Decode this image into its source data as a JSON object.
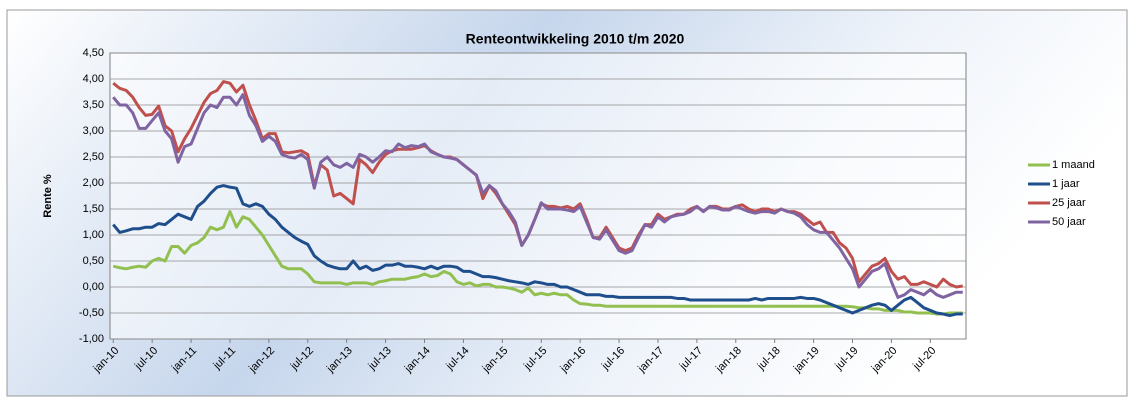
{
  "chart_data": {
    "type": "line",
    "title": "Renteontwikkeling 2010 t/m 2020",
    "y_label": "Rente %",
    "categories": [
      "jan-10",
      null,
      null,
      null,
      null,
      null,
      "jul-10",
      null,
      null,
      null,
      null,
      null,
      "jan-11",
      null,
      null,
      null,
      null,
      null,
      "jul-11",
      null,
      null,
      null,
      null,
      null,
      "jan-12",
      null,
      null,
      null,
      null,
      null,
      "jul-12",
      null,
      null,
      null,
      null,
      null,
      "jan-13",
      null,
      null,
      null,
      null,
      null,
      "jul-13",
      null,
      null,
      null,
      null,
      null,
      "jan-14",
      null,
      null,
      null,
      null,
      null,
      "jul-14",
      null,
      null,
      null,
      null,
      null,
      "jan-15",
      null,
      null,
      null,
      null,
      null,
      "jul-15",
      null,
      null,
      null,
      null,
      null,
      "jan-16",
      null,
      null,
      null,
      null,
      null,
      "jul-16",
      null,
      null,
      null,
      null,
      null,
      "jan-17",
      null,
      null,
      null,
      null,
      null,
      "jul-17",
      null,
      null,
      null,
      null,
      null,
      "jan-18",
      null,
      null,
      null,
      null,
      null,
      "jul-18",
      null,
      null,
      null,
      null,
      null,
      "jan-19",
      null,
      null,
      null,
      null,
      null,
      "jul-19",
      null,
      null,
      null,
      null,
      null,
      "jan-20",
      null,
      null,
      null,
      null,
      null,
      "jul-20",
      null,
      null,
      null,
      null,
      null
    ],
    "series": [
      {
        "name": "1 maand",
        "color": "#92c050",
        "values": [
          0.4,
          0.37,
          0.35,
          0.38,
          0.4,
          0.38,
          0.5,
          0.55,
          0.5,
          0.78,
          0.78,
          0.65,
          0.8,
          0.85,
          0.95,
          1.15,
          1.1,
          1.15,
          1.45,
          1.15,
          1.35,
          1.3,
          1.15,
          1.0,
          0.8,
          0.6,
          0.4,
          0.35,
          0.35,
          0.35,
          0.25,
          0.1,
          0.08,
          0.08,
          0.08,
          0.08,
          0.05,
          0.08,
          0.08,
          0.08,
          0.05,
          0.1,
          0.12,
          0.15,
          0.15,
          0.15,
          0.18,
          0.2,
          0.25,
          0.2,
          0.22,
          0.3,
          0.25,
          0.1,
          0.05,
          0.08,
          0.02,
          0.05,
          0.05,
          0.0,
          0.0,
          -0.02,
          -0.05,
          -0.1,
          -0.02,
          -0.15,
          -0.12,
          -0.15,
          -0.12,
          -0.15,
          -0.15,
          -0.25,
          -0.32,
          -0.33,
          -0.35,
          -0.35,
          -0.37,
          -0.37,
          -0.37,
          -0.37,
          -0.37,
          -0.37,
          -0.37,
          -0.37,
          -0.37,
          -0.37,
          -0.37,
          -0.37,
          -0.37,
          -0.37,
          -0.37,
          -0.37,
          -0.37,
          -0.37,
          -0.37,
          -0.37,
          -0.37,
          -0.37,
          -0.37,
          -0.37,
          -0.37,
          -0.37,
          -0.37,
          -0.37,
          -0.37,
          -0.37,
          -0.37,
          -0.37,
          -0.37,
          -0.37,
          -0.37,
          -0.37,
          -0.37,
          -0.37,
          -0.38,
          -0.4,
          -0.4,
          -0.42,
          -0.42,
          -0.45,
          -0.45,
          -0.45,
          -0.48,
          -0.48,
          -0.5,
          -0.5,
          -0.5,
          -0.52,
          -0.52,
          -0.5,
          -0.5,
          -0.5
        ]
      },
      {
        "name": "1 jaar",
        "color": "#1f4e8c",
        "values": [
          1.2,
          1.05,
          1.08,
          1.12,
          1.12,
          1.15,
          1.15,
          1.22,
          1.2,
          1.3,
          1.4,
          1.35,
          1.3,
          1.55,
          1.65,
          1.8,
          1.92,
          1.95,
          1.92,
          1.9,
          1.6,
          1.55,
          1.6,
          1.55,
          1.4,
          1.3,
          1.15,
          1.05,
          0.95,
          0.88,
          0.82,
          0.6,
          0.5,
          0.42,
          0.38,
          0.35,
          0.35,
          0.5,
          0.35,
          0.4,
          0.32,
          0.35,
          0.42,
          0.42,
          0.45,
          0.4,
          0.4,
          0.38,
          0.35,
          0.4,
          0.35,
          0.4,
          0.4,
          0.38,
          0.3,
          0.3,
          0.25,
          0.2,
          0.2,
          0.18,
          0.15,
          0.12,
          0.1,
          0.08,
          0.05,
          0.1,
          0.08,
          0.05,
          0.05,
          0.0,
          0.0,
          -0.05,
          -0.1,
          -0.15,
          -0.15,
          -0.15,
          -0.18,
          -0.18,
          -0.2,
          -0.2,
          -0.2,
          -0.2,
          -0.2,
          -0.2,
          -0.2,
          -0.2,
          -0.2,
          -0.22,
          -0.22,
          -0.25,
          -0.25,
          -0.25,
          -0.25,
          -0.25,
          -0.25,
          -0.25,
          -0.25,
          -0.25,
          -0.25,
          -0.22,
          -0.25,
          -0.22,
          -0.22,
          -0.22,
          -0.22,
          -0.22,
          -0.2,
          -0.22,
          -0.22,
          -0.25,
          -0.3,
          -0.35,
          -0.4,
          -0.45,
          -0.5,
          -0.45,
          -0.4,
          -0.35,
          -0.32,
          -0.35,
          -0.45,
          -0.35,
          -0.25,
          -0.2,
          -0.3,
          -0.4,
          -0.45,
          -0.5,
          -0.52,
          -0.55,
          -0.52,
          -0.52
        ]
      },
      {
        "name": "25 jaar",
        "color": "#c0504d",
        "values": [
          3.92,
          3.82,
          3.78,
          3.65,
          3.45,
          3.3,
          3.32,
          3.48,
          3.1,
          3.0,
          2.6,
          2.85,
          3.05,
          3.3,
          3.55,
          3.72,
          3.78,
          3.95,
          3.92,
          3.75,
          3.88,
          3.5,
          3.2,
          2.85,
          2.95,
          2.95,
          2.6,
          2.58,
          2.6,
          2.62,
          2.55,
          1.95,
          2.35,
          2.25,
          1.75,
          1.8,
          1.7,
          1.6,
          2.45,
          2.35,
          2.2,
          2.4,
          2.55,
          2.62,
          2.65,
          2.65,
          2.65,
          2.68,
          2.72,
          2.62,
          2.55,
          2.5,
          2.5,
          2.45,
          2.35,
          2.25,
          2.15,
          1.7,
          1.95,
          1.8,
          1.6,
          1.4,
          1.2,
          0.8,
          1.0,
          1.3,
          1.6,
          1.55,
          1.55,
          1.52,
          1.55,
          1.5,
          1.6,
          1.3,
          0.95,
          0.95,
          1.15,
          0.95,
          0.75,
          0.7,
          0.75,
          1.0,
          1.2,
          1.2,
          1.4,
          1.3,
          1.35,
          1.4,
          1.4,
          1.5,
          1.55,
          1.45,
          1.55,
          1.55,
          1.5,
          1.5,
          1.55,
          1.58,
          1.5,
          1.45,
          1.5,
          1.5,
          1.45,
          1.5,
          1.45,
          1.45,
          1.4,
          1.3,
          1.2,
          1.25,
          1.05,
          1.05,
          0.85,
          0.75,
          0.55,
          0.1,
          0.25,
          0.4,
          0.45,
          0.55,
          0.3,
          0.15,
          0.2,
          0.05,
          0.05,
          0.1,
          0.05,
          0.0,
          0.15,
          0.05,
          0.0,
          0.02
        ]
      },
      {
        "name": "50 jaar",
        "color": "#8064a2",
        "values": [
          3.65,
          3.5,
          3.5,
          3.35,
          3.05,
          3.05,
          3.2,
          3.35,
          3.0,
          2.85,
          2.4,
          2.7,
          2.75,
          3.05,
          3.35,
          3.5,
          3.45,
          3.65,
          3.65,
          3.5,
          3.7,
          3.3,
          3.1,
          2.8,
          2.9,
          2.8,
          2.55,
          2.5,
          2.48,
          2.55,
          2.45,
          1.9,
          2.4,
          2.5,
          2.35,
          2.3,
          2.38,
          2.3,
          2.55,
          2.5,
          2.4,
          2.5,
          2.62,
          2.6,
          2.75,
          2.68,
          2.72,
          2.7,
          2.75,
          2.6,
          2.55,
          2.5,
          2.48,
          2.45,
          2.35,
          2.25,
          2.15,
          1.8,
          1.95,
          1.85,
          1.6,
          1.45,
          1.25,
          0.8,
          1.0,
          1.3,
          1.62,
          1.5,
          1.5,
          1.5,
          1.48,
          1.45,
          1.55,
          1.25,
          0.95,
          0.92,
          1.1,
          0.9,
          0.7,
          0.65,
          0.7,
          0.95,
          1.2,
          1.15,
          1.35,
          1.25,
          1.35,
          1.38,
          1.4,
          1.45,
          1.55,
          1.45,
          1.55,
          1.52,
          1.48,
          1.48,
          1.55,
          1.5,
          1.45,
          1.42,
          1.45,
          1.45,
          1.42,
          1.5,
          1.45,
          1.42,
          1.35,
          1.2,
          1.1,
          1.05,
          1.05,
          0.9,
          0.75,
          0.55,
          0.35,
          0.0,
          0.15,
          0.3,
          0.35,
          0.45,
          0.1,
          -0.2,
          -0.15,
          -0.05,
          -0.1,
          -0.15,
          -0.05,
          -0.15,
          -0.2,
          -0.15,
          -0.1,
          -0.1
        ]
      }
    ],
    "ylim": [
      -1,
      4.5
    ],
    "yticks": [
      {
        "value": -1,
        "label": "-1,00"
      },
      {
        "value": -0.5,
        "label": "-0,50"
      },
      {
        "value": 0,
        "label": "0,00"
      },
      {
        "value": 0.5,
        "label": "0,50"
      },
      {
        "value": 1,
        "label": "1,00"
      },
      {
        "value": 1.5,
        "label": "1,50"
      },
      {
        "value": 2,
        "label": "2,00"
      },
      {
        "value": 2.5,
        "label": "2,50"
      },
      {
        "value": 3,
        "label": "3,00"
      },
      {
        "value": 3.5,
        "label": "3,50"
      },
      {
        "value": 4,
        "label": "4,00"
      },
      {
        "value": 4.5,
        "label": "4,50"
      }
    ],
    "grid": true,
    "legend": "right"
  }
}
